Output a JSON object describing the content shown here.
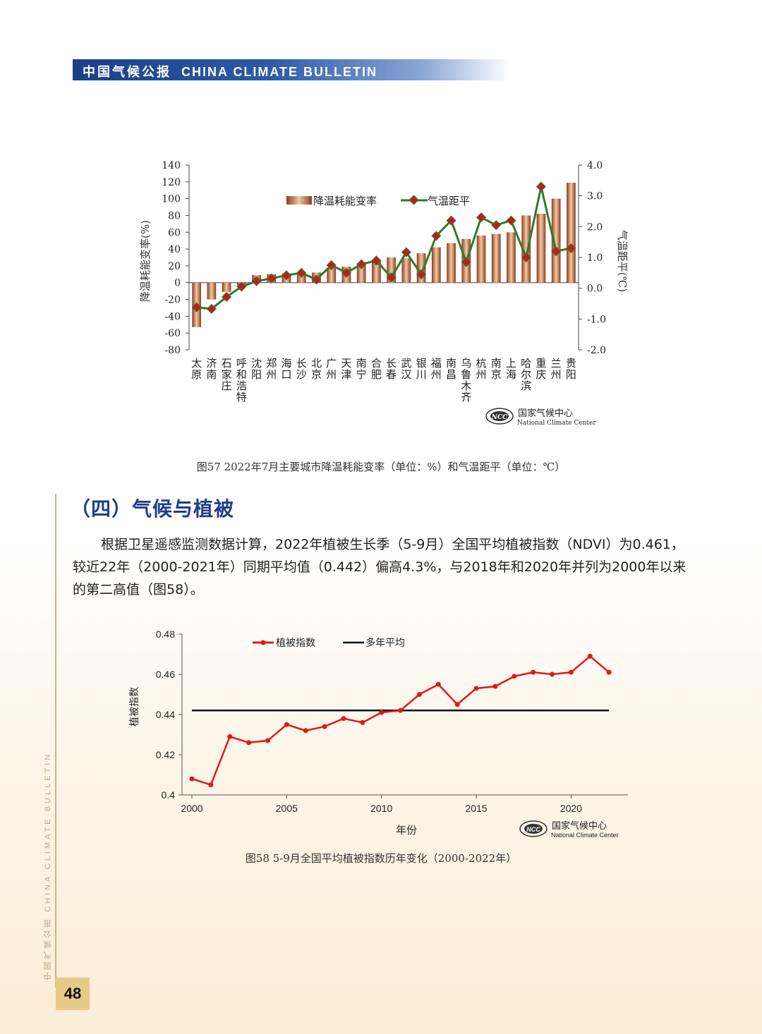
{
  "header": {
    "title_cn": "中国气候公报",
    "title_en": "CHINA CLIMATE BULLETIN"
  },
  "side_label": {
    "cn": "中国气候公报",
    "en": "CHINA CLIMATE BULLETIN"
  },
  "page_number": "48",
  "logo": {
    "cn": "国家气候中心",
    "en": "National Climate Center",
    "abbr": "NCC"
  },
  "fig57": {
    "caption": "图57 2022年7月主要城市降温耗能变率（单位：%）和气温距平（单位：℃）"
  },
  "section": {
    "title": "（四）气候与植被",
    "paragraph": "根据卫星遥感监测数据计算，2022年植被生长季（5-9月）全国平均植被指数（NDVI）为0.461，较近22年（2000-2021年）同期平均值（0.442）偏高4.3%，与2018年和2020年并列为2000年以来的第二高值（图58）。"
  },
  "fig58": {
    "caption": "图58 5-9月全国平均植被指数历年变化（2000-2022年）"
  },
  "colors": {
    "bar": "#b2633a",
    "line57": "#2f7a2a",
    "marker57": "#c8191e",
    "line58": "#e0191e",
    "avg": "#111111",
    "header": "#1c3f86"
  },
  "chart_data": [
    {
      "type": "bar",
      "categories": [
        "太原",
        "济南",
        "石家庄",
        "呼和浩特",
        "沈阳",
        "郑州",
        "海口",
        "长沙",
        "北京",
        "广州",
        "天津",
        "南宁",
        "合肥",
        "长春",
        "武汉",
        "银川",
        "福州",
        "南昌",
        "乌鲁木齐",
        "杭州",
        "南京",
        "上海",
        "哈尔滨",
        "重庆",
        "兰州",
        "贵阳"
      ],
      "series": [
        {
          "name": "降温耗能变率",
          "axis": "left",
          "type": "bar",
          "values": [
            -53,
            -20,
            -11,
            -3,
            9,
            10,
            11,
            11,
            12,
            18,
            19,
            22,
            26,
            30,
            29,
            35,
            42,
            47,
            52,
            56,
            58,
            60,
            80,
            82,
            100,
            119
          ]
        },
        {
          "name": "气温距平",
          "axis": "right",
          "type": "line",
          "values": [
            -0.62,
            -0.67,
            -0.28,
            0.05,
            0.23,
            0.32,
            0.42,
            0.5,
            0.28,
            0.75,
            0.5,
            0.78,
            0.9,
            0.35,
            1.17,
            0.45,
            1.7,
            2.2,
            0.85,
            2.3,
            2.05,
            2.2,
            1.0,
            3.3,
            1.2,
            1.3
          ]
        }
      ],
      "ylabel": "降温耗能变率(%)",
      "y2label": "气温距平(℃)",
      "ylim": [
        -80,
        140
      ],
      "y2lim": [
        -2.0,
        4.0
      ],
      "yticks": [
        "140",
        "120",
        "100",
        "80",
        "60",
        "40",
        "20",
        "0",
        "-20",
        "-40",
        "-60",
        "-80"
      ],
      "y2ticks": [
        "4.0",
        "3.0",
        "2.0",
        "1.0",
        "0.0",
        "-1.0",
        "-2.0"
      ],
      "legend_position": "top-center"
    },
    {
      "type": "line",
      "x": [
        2000,
        2001,
        2002,
        2003,
        2004,
        2005,
        2006,
        2007,
        2008,
        2009,
        2010,
        2011,
        2012,
        2013,
        2014,
        2015,
        2016,
        2017,
        2018,
        2019,
        2020,
        2021,
        2022
      ],
      "series": [
        {
          "name": "植被指数",
          "values": [
            0.408,
            0.405,
            0.429,
            0.426,
            0.427,
            0.435,
            0.432,
            0.434,
            0.438,
            0.436,
            0.441,
            0.442,
            0.45,
            0.455,
            0.445,
            0.453,
            0.454,
            0.459,
            0.461,
            0.46,
            0.461,
            0.469,
            0.461
          ]
        },
        {
          "name": "多年平均",
          "values": [
            0.442,
            0.442
          ],
          "x": [
            2000,
            2022
          ]
        }
      ],
      "xlabel": "年份",
      "ylabel": "植被指数",
      "ylim": [
        0.4,
        0.48
      ],
      "yticks": [
        "0.4",
        "0.42",
        "0.44",
        "0.46",
        "0.48"
      ],
      "xticks": [
        "2000",
        "2005",
        "2010",
        "2015",
        "2020"
      ],
      "legend_position": "top-left"
    }
  ]
}
